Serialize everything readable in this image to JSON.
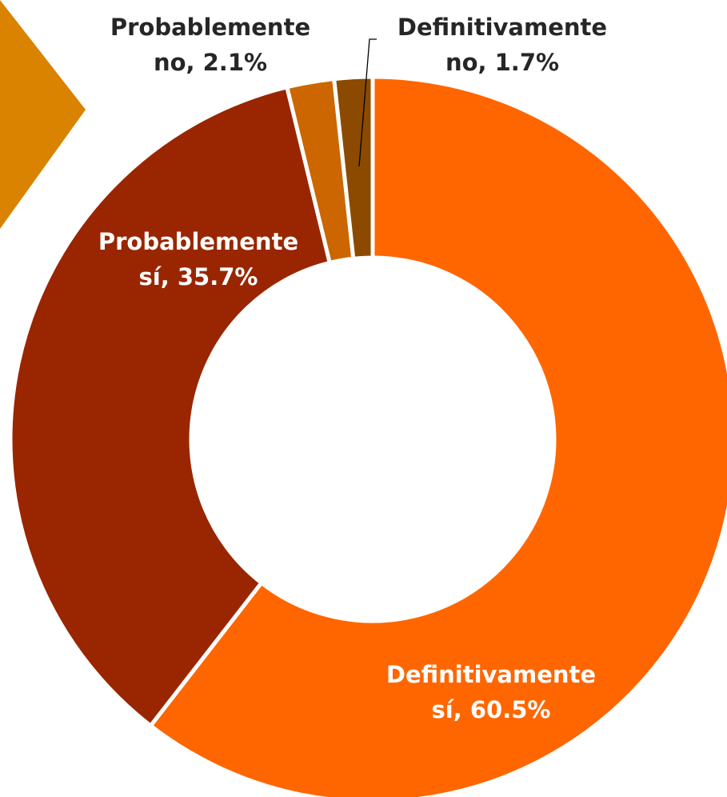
{
  "chart_data": {
    "type": "pie",
    "variant": "donut",
    "title": "",
    "slices": [
      {
        "label_line1": "Definitivamente",
        "label_line2": "sí, 60.5%",
        "value": 60.5,
        "color": "#FF6600"
      },
      {
        "label_line1": "Probablemente",
        "label_line2": "sí, 35.7%",
        "value": 35.7,
        "color": "#992600"
      },
      {
        "label_line1": "Probablemente",
        "label_line2": "no, 2.1%",
        "value": 2.1,
        "color": "#CC6600"
      },
      {
        "label_line1": "Definitivamente",
        "label_line2": "no, 1.7%",
        "value": 1.7,
        "color": "#8B4A00"
      }
    ],
    "decoration_color": "#D98300"
  }
}
